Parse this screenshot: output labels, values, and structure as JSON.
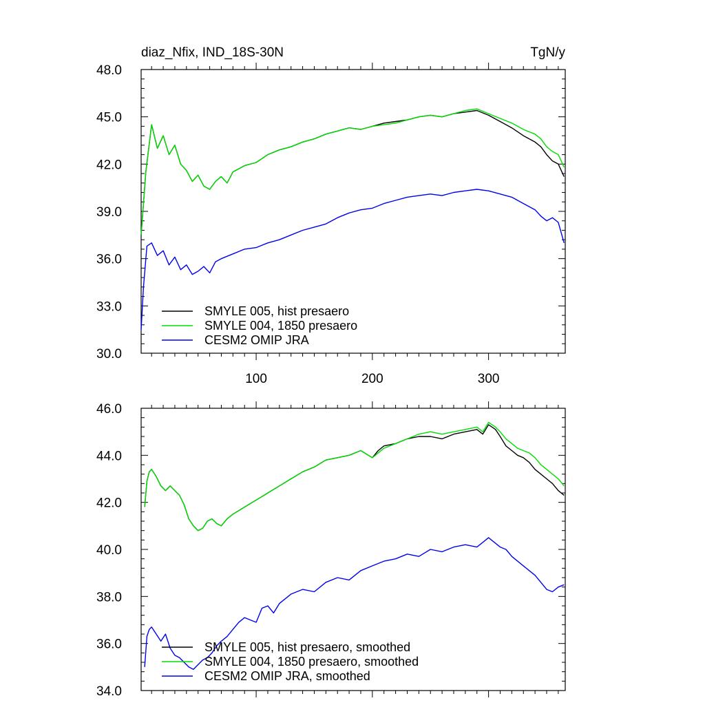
{
  "colors": {
    "hist": "#000000",
    "pre1850": "#00dd00",
    "omip": "#0000ee"
  },
  "chart_data": [
    {
      "type": "line",
      "panel": "raw",
      "title": "diaz_Nfix, IND_18S-30N",
      "units": "TgN/y",
      "xlim": [
        1,
        366
      ],
      "ylim": [
        30.0,
        48.0
      ],
      "xticks": [
        100,
        200,
        300
      ],
      "xtick_labels": [
        "100",
        "200",
        "300"
      ],
      "yticks": [
        30,
        33,
        36,
        39,
        42,
        45,
        48
      ],
      "ytick_labels": [
        "30.0",
        "33.0",
        "36.0",
        "39.0",
        "42.0",
        "45.0",
        "48.0"
      ],
      "legend_position": "bottom-left",
      "legend": [
        "SMYLE 005, hist presaero",
        "SMYLE 004, 1850 presaero",
        "CESM2 OMIP JRA"
      ],
      "series": [
        {
          "name": "SMYLE 005, hist presaero",
          "color_key": "hist",
          "x": [
            1,
            5,
            10,
            15,
            20,
            25,
            30,
            35,
            40,
            45,
            50,
            55,
            60,
            65,
            70,
            75,
            80,
            90,
            100,
            110,
            120,
            130,
            140,
            150,
            160,
            170,
            180,
            190,
            200,
            210,
            220,
            230,
            240,
            250,
            260,
            270,
            280,
            290,
            300,
            310,
            320,
            330,
            340,
            345,
            350,
            355,
            360,
            365
          ],
          "y": [
            37.5,
            41.5,
            44.5,
            43.0,
            43.8,
            42.6,
            43.2,
            42.0,
            41.6,
            40.9,
            41.3,
            40.6,
            40.4,
            40.9,
            41.2,
            40.8,
            41.5,
            41.9,
            42.1,
            42.6,
            42.9,
            43.1,
            43.4,
            43.6,
            43.9,
            44.1,
            44.3,
            44.2,
            44.4,
            44.6,
            44.7,
            44.8,
            45.0,
            45.1,
            45.0,
            45.2,
            45.3,
            45.4,
            45.1,
            44.7,
            44.3,
            43.8,
            43.4,
            43.1,
            42.6,
            42.2,
            42.0,
            41.2
          ]
        },
        {
          "name": "SMYLE 004, 1850 presaero",
          "color_key": "pre1850",
          "x": [
            1,
            5,
            10,
            15,
            20,
            25,
            30,
            35,
            40,
            45,
            50,
            55,
            60,
            65,
            70,
            75,
            80,
            90,
            100,
            110,
            120,
            130,
            140,
            150,
            160,
            170,
            180,
            190,
            200,
            210,
            220,
            230,
            240,
            250,
            260,
            270,
            280,
            290,
            300,
            310,
            320,
            330,
            340,
            345,
            350,
            355,
            360,
            365
          ],
          "y": [
            37.5,
            41.5,
            44.5,
            43.0,
            43.8,
            42.6,
            43.2,
            42.0,
            41.6,
            40.9,
            41.3,
            40.6,
            40.4,
            40.9,
            41.2,
            40.8,
            41.5,
            41.9,
            42.1,
            42.6,
            42.9,
            43.1,
            43.4,
            43.6,
            43.9,
            44.1,
            44.3,
            44.2,
            44.4,
            44.5,
            44.6,
            44.8,
            45.0,
            45.1,
            45.0,
            45.2,
            45.4,
            45.5,
            45.2,
            44.9,
            44.6,
            44.2,
            43.9,
            43.6,
            43.1,
            42.8,
            42.6,
            41.8
          ]
        },
        {
          "name": "CESM2 OMIP JRA",
          "color_key": "omip",
          "x": [
            1,
            3,
            6,
            10,
            15,
            20,
            25,
            30,
            35,
            40,
            45,
            50,
            55,
            60,
            65,
            70,
            80,
            90,
            100,
            110,
            120,
            130,
            140,
            150,
            160,
            170,
            180,
            190,
            200,
            210,
            220,
            230,
            240,
            250,
            260,
            270,
            280,
            290,
            300,
            310,
            320,
            330,
            340,
            345,
            350,
            355,
            360,
            365
          ],
          "y": [
            31.5,
            34.2,
            36.8,
            37.0,
            36.2,
            36.5,
            35.6,
            36.1,
            35.3,
            35.6,
            35.0,
            35.2,
            35.5,
            35.1,
            35.8,
            36.0,
            36.3,
            36.6,
            36.7,
            37.0,
            37.2,
            37.5,
            37.8,
            38.0,
            38.2,
            38.6,
            38.9,
            39.1,
            39.2,
            39.5,
            39.7,
            39.9,
            40.0,
            40.1,
            40.0,
            40.2,
            40.3,
            40.4,
            40.3,
            40.1,
            39.9,
            39.5,
            39.1,
            38.7,
            38.4,
            38.6,
            38.3,
            37.0
          ]
        }
      ]
    },
    {
      "type": "line",
      "panel": "smoothed",
      "xlim": [
        1,
        366
      ],
      "ylim": [
        34.0,
        46.0
      ],
      "xticks": [
        100,
        200,
        300
      ],
      "yticks": [
        34,
        36,
        38,
        40,
        42,
        44,
        46
      ],
      "ytick_labels": [
        "34.0",
        "36.0",
        "38.0",
        "40.0",
        "42.0",
        "44.0",
        "46.0"
      ],
      "legend_position": "bottom-left",
      "legend": [
        "SMYLE 005, hist presaero, smoothed",
        "SMYLE 004, 1850 presaero, smoothed",
        "CESM2 OMIP JRA, smoothed"
      ],
      "series": [
        {
          "name": "SMYLE 005, hist presaero, smoothed",
          "color_key": "hist",
          "x": [
            4,
            6,
            8,
            10,
            14,
            18,
            22,
            26,
            30,
            34,
            38,
            42,
            46,
            50,
            54,
            58,
            62,
            66,
            70,
            75,
            80,
            90,
            100,
            110,
            120,
            130,
            140,
            150,
            160,
            170,
            180,
            190,
            200,
            205,
            210,
            220,
            230,
            240,
            250,
            260,
            270,
            280,
            290,
            295,
            300,
            303,
            306,
            310,
            315,
            320,
            325,
            330,
            335,
            340,
            345,
            350,
            355,
            360,
            365
          ],
          "y": [
            41.8,
            42.9,
            43.3,
            43.4,
            43.1,
            42.7,
            42.5,
            42.7,
            42.5,
            42.3,
            41.9,
            41.3,
            41.0,
            40.8,
            40.9,
            41.2,
            41.3,
            41.1,
            41.0,
            41.3,
            41.5,
            41.8,
            42.1,
            42.4,
            42.7,
            43.0,
            43.3,
            43.5,
            43.8,
            43.9,
            44.0,
            44.2,
            43.9,
            44.2,
            44.4,
            44.5,
            44.7,
            44.8,
            44.8,
            44.7,
            44.9,
            45.0,
            45.1,
            44.9,
            45.3,
            45.2,
            45.1,
            44.8,
            44.4,
            44.2,
            44.0,
            43.9,
            43.7,
            43.4,
            43.2,
            43.0,
            42.8,
            42.5,
            42.3
          ]
        },
        {
          "name": "SMYLE 004, 1850 presaero, smoothed",
          "color_key": "pre1850",
          "x": [
            4,
            6,
            8,
            10,
            14,
            18,
            22,
            26,
            30,
            34,
            38,
            42,
            46,
            50,
            54,
            58,
            62,
            66,
            70,
            75,
            80,
            90,
            100,
            110,
            120,
            130,
            140,
            150,
            160,
            170,
            180,
            190,
            200,
            205,
            210,
            220,
            230,
            240,
            250,
            260,
            270,
            280,
            290,
            295,
            300,
            303,
            306,
            310,
            315,
            320,
            325,
            330,
            335,
            340,
            345,
            350,
            355,
            360,
            365
          ],
          "y": [
            41.8,
            42.9,
            43.3,
            43.4,
            43.1,
            42.7,
            42.5,
            42.7,
            42.5,
            42.3,
            41.9,
            41.3,
            41.0,
            40.8,
            40.9,
            41.2,
            41.3,
            41.1,
            41.0,
            41.3,
            41.5,
            41.8,
            42.1,
            42.4,
            42.7,
            43.0,
            43.3,
            43.5,
            43.8,
            43.9,
            44.0,
            44.2,
            43.9,
            44.1,
            44.3,
            44.5,
            44.7,
            44.9,
            45.0,
            44.9,
            45.0,
            45.1,
            45.2,
            45.0,
            45.4,
            45.3,
            45.2,
            45.0,
            44.7,
            44.5,
            44.3,
            44.2,
            44.1,
            43.9,
            43.6,
            43.4,
            43.2,
            43.0,
            42.7
          ]
        },
        {
          "name": "CESM2 OMIP JRA, smoothed",
          "color_key": "omip",
          "x": [
            4,
            6,
            8,
            10,
            14,
            18,
            22,
            26,
            30,
            34,
            38,
            42,
            46,
            50,
            54,
            58,
            62,
            66,
            70,
            75,
            80,
            85,
            90,
            95,
            100,
            105,
            110,
            115,
            120,
            130,
            140,
            150,
            160,
            170,
            180,
            190,
            200,
            210,
            220,
            230,
            240,
            250,
            260,
            270,
            280,
            290,
            295,
            300,
            305,
            310,
            315,
            320,
            325,
            330,
            335,
            340,
            345,
            350,
            355,
            360,
            365
          ],
          "y": [
            35.0,
            36.3,
            36.6,
            36.7,
            36.4,
            36.1,
            36.4,
            35.8,
            35.5,
            35.4,
            35.2,
            35.0,
            34.9,
            35.1,
            35.3,
            35.4,
            35.6,
            35.9,
            36.1,
            36.3,
            36.6,
            36.9,
            37.1,
            37.0,
            36.9,
            37.5,
            37.6,
            37.3,
            37.7,
            38.1,
            38.3,
            38.2,
            38.6,
            38.8,
            38.7,
            39.1,
            39.3,
            39.5,
            39.6,
            39.8,
            39.7,
            40.0,
            39.9,
            40.1,
            40.2,
            40.1,
            40.3,
            40.5,
            40.3,
            40.1,
            40.0,
            39.7,
            39.5,
            39.3,
            39.1,
            38.9,
            38.6,
            38.3,
            38.2,
            38.4,
            38.5
          ]
        }
      ]
    }
  ]
}
